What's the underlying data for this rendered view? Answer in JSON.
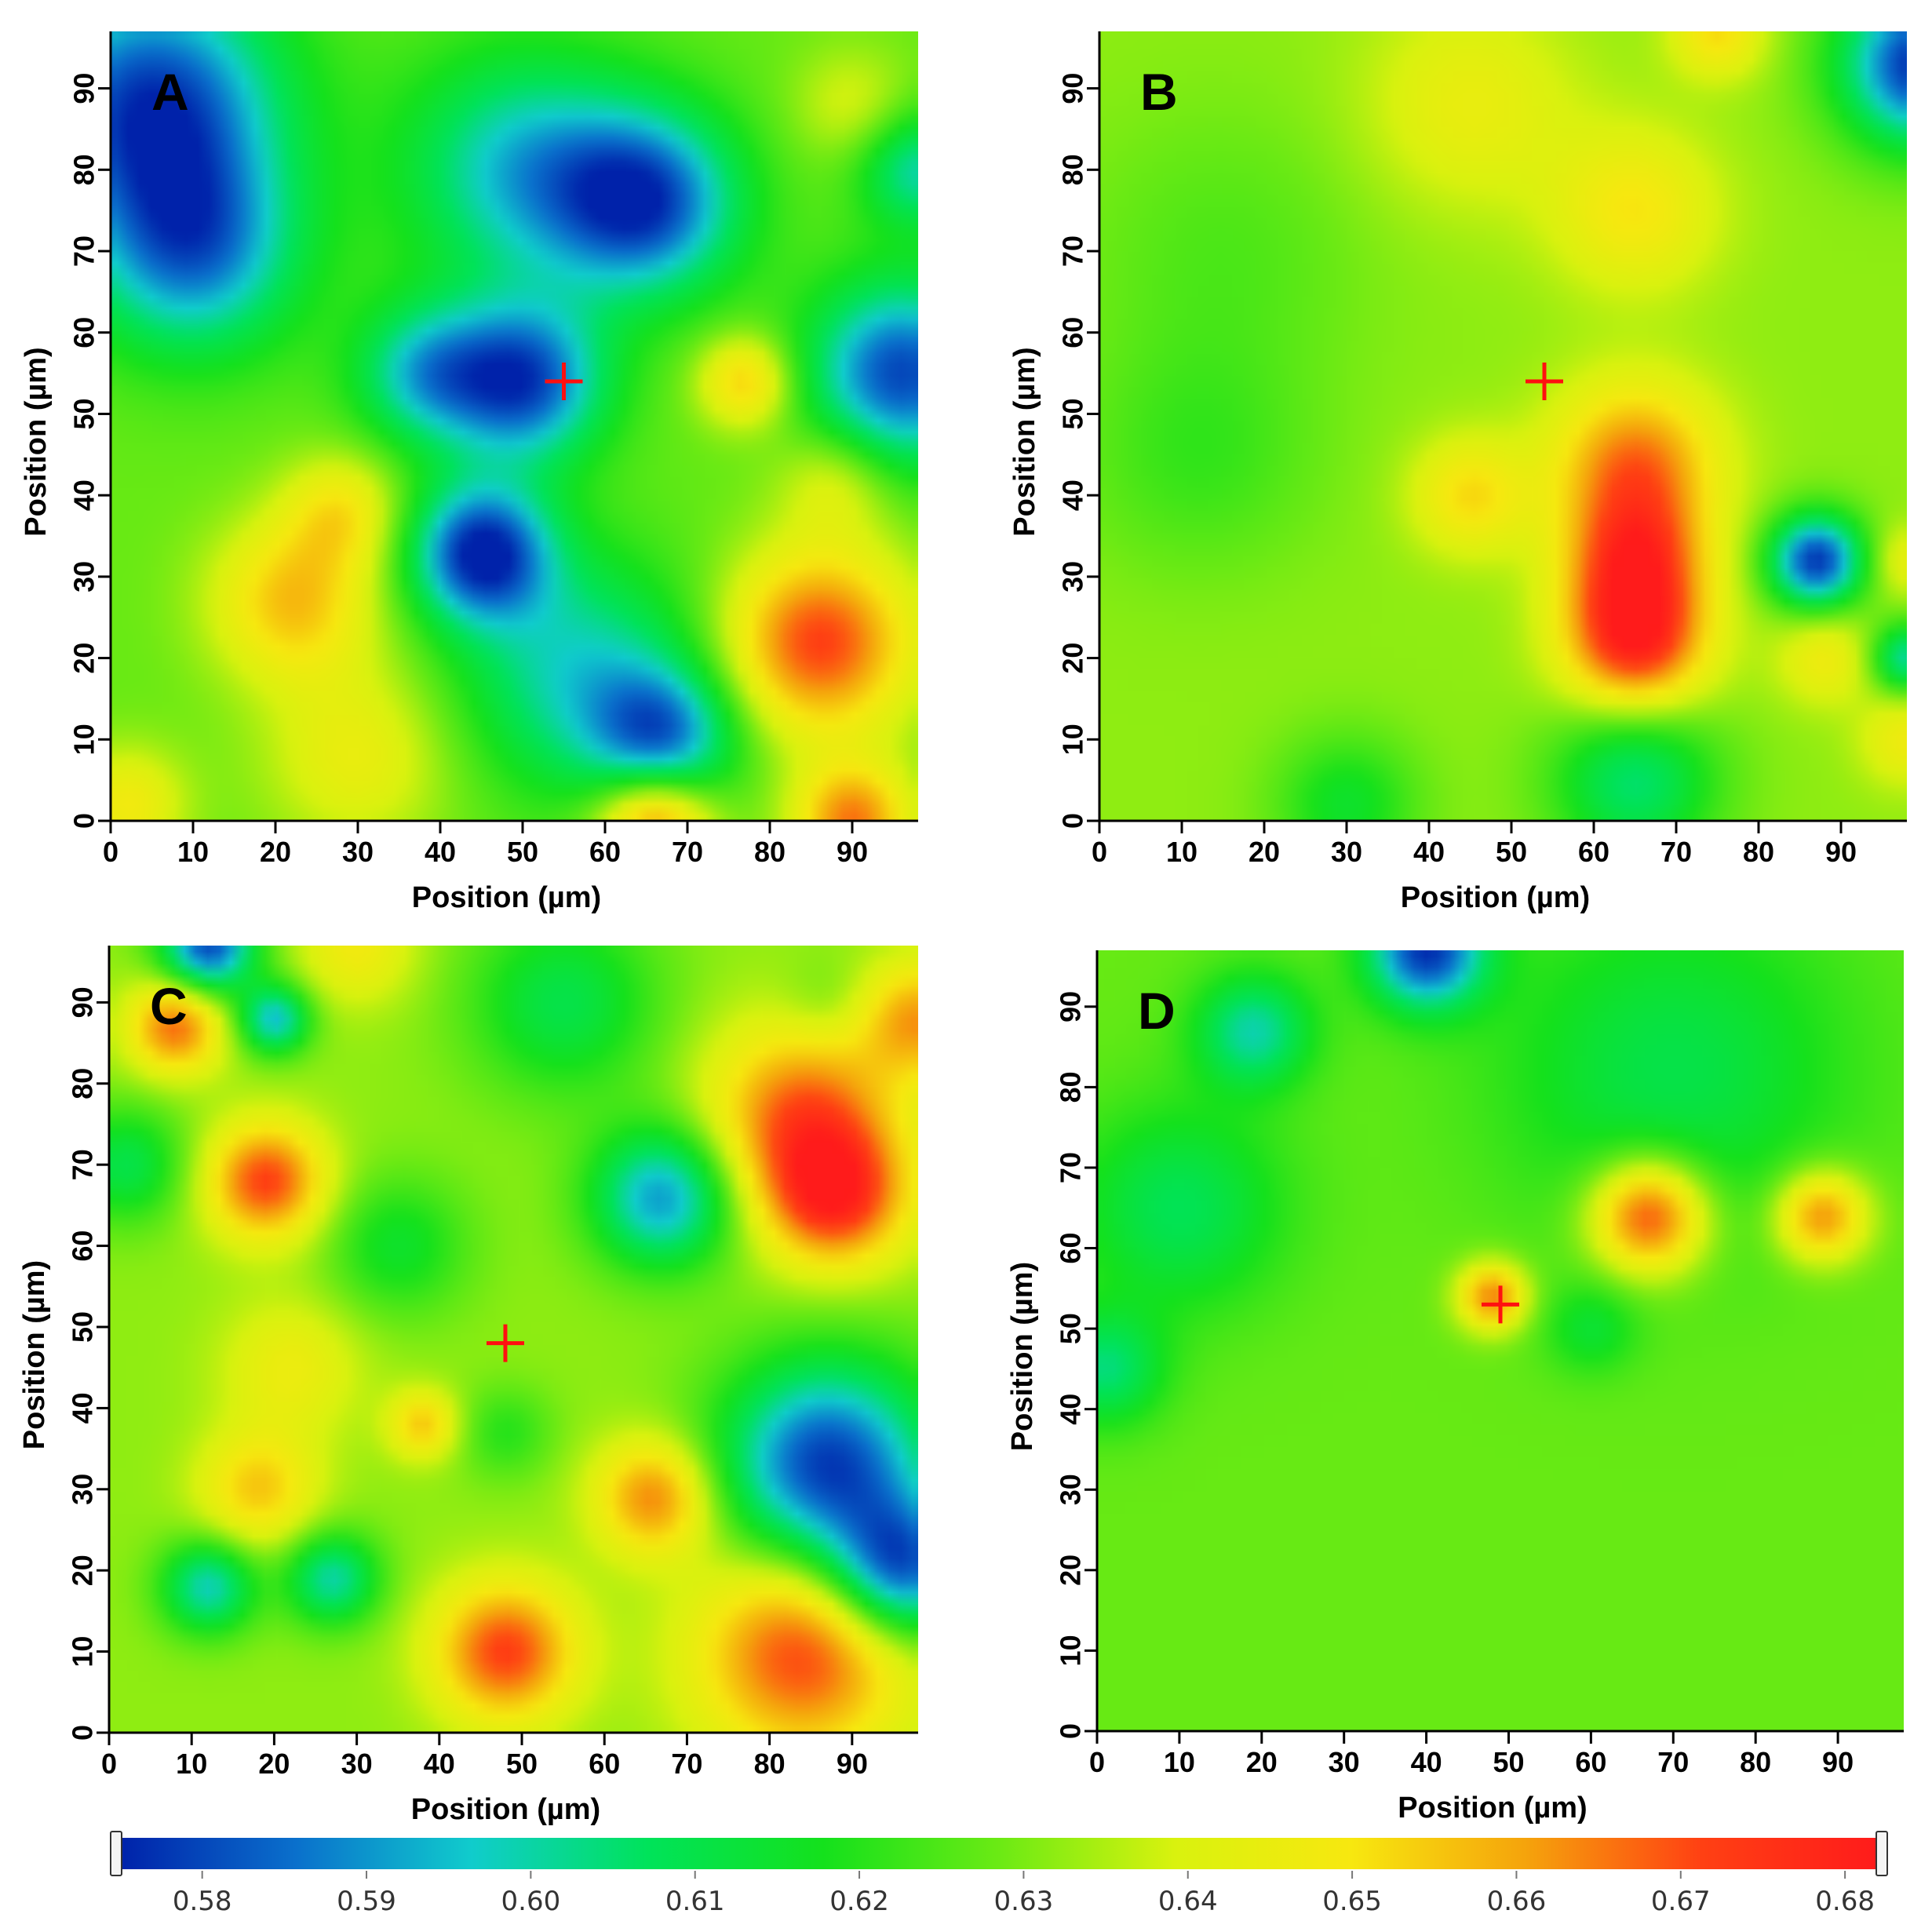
{
  "chart_data": [
    {
      "type": "heatmap",
      "panel": "A",
      "xlabel": "Position (µm)",
      "ylabel": "Position (µm)",
      "xlim": [
        0,
        98
      ],
      "ylim": [
        0,
        97
      ],
      "xticks": [
        0,
        10,
        20,
        30,
        40,
        50,
        60,
        70,
        80,
        90
      ],
      "yticks": [
        0,
        10,
        20,
        30,
        40,
        50,
        60,
        70,
        80,
        90
      ],
      "background": 0.628,
      "marker": {
        "x": 55,
        "y": 54
      },
      "features": [
        {
          "x": 5,
          "y": 88,
          "r": 11,
          "v": 0.578
        },
        {
          "x": 10,
          "y": 70,
          "r": 9,
          "v": 0.59
        },
        {
          "x": 50,
          "y": 80,
          "r": 10,
          "v": 0.595
        },
        {
          "x": 65,
          "y": 76,
          "r": 8,
          "v": 0.582
        },
        {
          "x": 50,
          "y": 54,
          "r": 7,
          "v": 0.58
        },
        {
          "x": 38,
          "y": 55,
          "r": 6,
          "v": 0.598
        },
        {
          "x": 96,
          "y": 55,
          "r": 8,
          "v": 0.58
        },
        {
          "x": 45,
          "y": 33,
          "r": 6,
          "v": 0.575
        },
        {
          "x": 57,
          "y": 18,
          "r": 10,
          "v": 0.598
        },
        {
          "x": 67,
          "y": 10,
          "r": 6,
          "v": 0.59
        },
        {
          "x": 77,
          "y": 54,
          "r": 4,
          "v": 0.655
        },
        {
          "x": 22,
          "y": 27,
          "r": 7,
          "v": 0.656
        },
        {
          "x": 28,
          "y": 38,
          "r": 5,
          "v": 0.648
        },
        {
          "x": 86,
          "y": 22,
          "r": 8,
          "v": 0.672
        },
        {
          "x": 66,
          "y": 0,
          "r": 5,
          "v": 0.67
        },
        {
          "x": 90,
          "y": 0,
          "r": 5,
          "v": 0.665
        },
        {
          "x": 30,
          "y": 8,
          "r": 8,
          "v": 0.645
        },
        {
          "x": 2,
          "y": 2,
          "r": 5,
          "v": 0.648
        },
        {
          "x": 88,
          "y": 42,
          "r": 5,
          "v": 0.643
        },
        {
          "x": 90,
          "y": 88,
          "r": 5,
          "v": 0.64
        },
        {
          "x": 98,
          "y": 80,
          "r": 5,
          "v": 0.6
        }
      ]
    },
    {
      "type": "heatmap",
      "panel": "B",
      "xlabel": "Position (µm)",
      "ylabel": "Position (µm)",
      "xlim": [
        0,
        98
      ],
      "ylim": [
        0,
        97
      ],
      "xticks": [
        0,
        10,
        20,
        30,
        40,
        50,
        60,
        70,
        80,
        90
      ],
      "yticks": [
        0,
        10,
        20,
        30,
        40,
        50,
        60,
        70,
        80,
        90
      ],
      "background": 0.632,
      "marker": {
        "x": 54,
        "y": 54
      },
      "features": [
        {
          "x": 65,
          "y": 22,
          "r": 6,
          "v": 0.677
        },
        {
          "x": 65,
          "y": 32,
          "r": 6,
          "v": 0.668
        },
        {
          "x": 65,
          "y": 44,
          "r": 7,
          "v": 0.665
        },
        {
          "x": 45,
          "y": 40,
          "r": 5,
          "v": 0.652
        },
        {
          "x": 65,
          "y": 75,
          "r": 7,
          "v": 0.65
        },
        {
          "x": 45,
          "y": 88,
          "r": 9,
          "v": 0.645
        },
        {
          "x": 75,
          "y": 97,
          "r": 4,
          "v": 0.652
        },
        {
          "x": 87,
          "y": 32,
          "r": 4,
          "v": 0.578
        },
        {
          "x": 100,
          "y": 93,
          "r": 7,
          "v": 0.575
        },
        {
          "x": 15,
          "y": 70,
          "r": 12,
          "v": 0.625
        },
        {
          "x": 12,
          "y": 45,
          "r": 10,
          "v": 0.622
        },
        {
          "x": 65,
          "y": 5,
          "r": 7,
          "v": 0.605
        },
        {
          "x": 30,
          "y": 2,
          "r": 6,
          "v": 0.615
        },
        {
          "x": 88,
          "y": 20,
          "r": 4,
          "v": 0.647
        },
        {
          "x": 98,
          "y": 10,
          "r": 4,
          "v": 0.647
        },
        {
          "x": 98,
          "y": 20,
          "r": 3,
          "v": 0.6
        },
        {
          "x": 98,
          "y": 32,
          "r": 3,
          "v": 0.645
        }
      ]
    },
    {
      "type": "heatmap",
      "panel": "C",
      "xlabel": "Position (µm)",
      "ylabel": "Position (µm)",
      "xlim": [
        0,
        98
      ],
      "ylim": [
        0,
        97
      ],
      "xticks": [
        0,
        10,
        20,
        30,
        40,
        50,
        60,
        70,
        80,
        90
      ],
      "yticks": [
        0,
        10,
        20,
        30,
        40,
        50,
        60,
        70,
        80,
        90
      ],
      "background": 0.632,
      "marker": {
        "x": 48,
        "y": 48
      },
      "features": [
        {
          "x": 8,
          "y": 87,
          "r": 4,
          "v": 0.667
        },
        {
          "x": 19,
          "y": 68,
          "r": 5,
          "v": 0.672
        },
        {
          "x": 18,
          "y": 30,
          "r": 5,
          "v": 0.655
        },
        {
          "x": 38,
          "y": 38,
          "r": 3,
          "v": 0.655
        },
        {
          "x": 48,
          "y": 10,
          "r": 6,
          "v": 0.672
        },
        {
          "x": 66,
          "y": 29,
          "r": 5,
          "v": 0.665
        },
        {
          "x": 84,
          "y": 76,
          "r": 8,
          "v": 0.668
        },
        {
          "x": 88,
          "y": 66,
          "r": 6,
          "v": 0.672
        },
        {
          "x": 84,
          "y": 10,
          "r": 9,
          "v": 0.672
        },
        {
          "x": 98,
          "y": 88,
          "r": 5,
          "v": 0.66
        },
        {
          "x": 30,
          "y": 97,
          "r": 5,
          "v": 0.648
        },
        {
          "x": 22,
          "y": 45,
          "r": 6,
          "v": 0.646
        },
        {
          "x": 12,
          "y": 97,
          "r": 4,
          "v": 0.58
        },
        {
          "x": 20,
          "y": 88,
          "r": 3,
          "v": 0.595
        },
        {
          "x": 67,
          "y": 66,
          "r": 6,
          "v": 0.59
        },
        {
          "x": 87,
          "y": 33,
          "r": 9,
          "v": 0.578
        },
        {
          "x": 96,
          "y": 20,
          "r": 6,
          "v": 0.585
        },
        {
          "x": 12,
          "y": 18,
          "r": 4,
          "v": 0.598
        },
        {
          "x": 27,
          "y": 19,
          "r": 4,
          "v": 0.6
        },
        {
          "x": 48,
          "y": 37,
          "r": 4,
          "v": 0.62
        },
        {
          "x": 55,
          "y": 90,
          "r": 8,
          "v": 0.61
        },
        {
          "x": 35,
          "y": 60,
          "r": 6,
          "v": 0.615
        },
        {
          "x": 2,
          "y": 70,
          "r": 5,
          "v": 0.61
        },
        {
          "x": 87,
          "y": 90,
          "r": 4,
          "v": 0.625
        }
      ]
    },
    {
      "type": "heatmap",
      "panel": "D",
      "xlabel": "Position (µm)",
      "ylabel": "Position (µm)",
      "xlim": [
        0,
        98
      ],
      "ylim": [
        0,
        97
      ],
      "xticks": [
        0,
        10,
        20,
        30,
        40,
        50,
        60,
        70,
        80,
        90
      ],
      "yticks": [
        0,
        10,
        20,
        30,
        40,
        50,
        60,
        70,
        80,
        90
      ],
      "background": 0.628,
      "marker": {
        "x": 49,
        "y": 53
      },
      "features": [
        {
          "x": 67,
          "y": 64,
          "r": 5,
          "v": 0.675
        },
        {
          "x": 88,
          "y": 64,
          "r": 4,
          "v": 0.665
        },
        {
          "x": 48,
          "y": 54,
          "r": 3,
          "v": 0.665
        },
        {
          "x": 40,
          "y": 97,
          "r": 5,
          "v": 0.578
        },
        {
          "x": 19,
          "y": 87,
          "r": 5,
          "v": 0.6
        },
        {
          "x": 70,
          "y": 82,
          "r": 15,
          "v": 0.61
        },
        {
          "x": 10,
          "y": 65,
          "r": 9,
          "v": 0.608
        },
        {
          "x": 1,
          "y": 45,
          "r": 5,
          "v": 0.605
        },
        {
          "x": 60,
          "y": 50,
          "r": 4,
          "v": 0.615
        }
      ]
    }
  ],
  "colorbar": {
    "min": 0.575,
    "max": 0.682,
    "tick_labels": [
      "0.58",
      "0.59",
      "0.60",
      "0.61",
      "0.62",
      "0.63",
      "0.64",
      "0.65",
      "0.66",
      "0.67",
      "0.68"
    ],
    "colors": [
      "#0022aa",
      "#0a70cc",
      "#10cccc",
      "#00e35a",
      "#14e11c",
      "#6bea14",
      "#d9f20e",
      "#f7e80f",
      "#f5a30c",
      "#ff4013",
      "#ff1b1b"
    ]
  }
}
